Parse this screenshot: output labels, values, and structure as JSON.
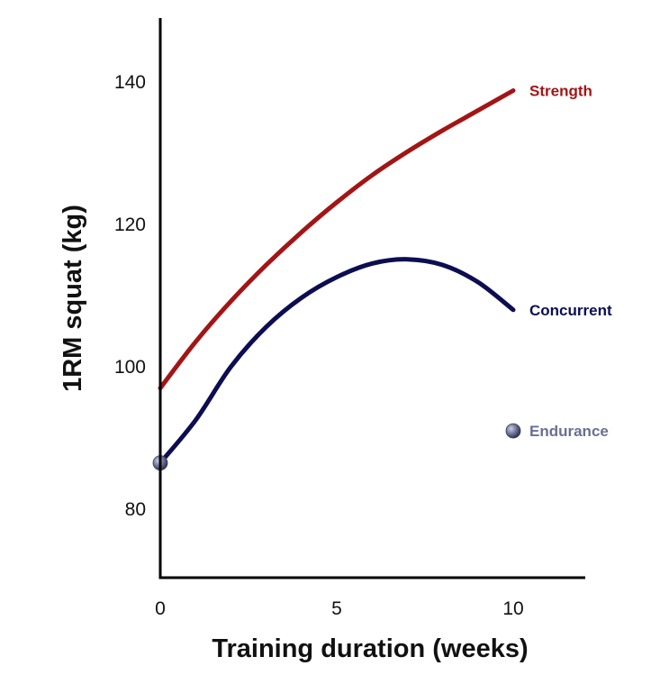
{
  "chart_data": {
    "type": "line",
    "title": "",
    "xlabel": "Training duration (weeks)",
    "ylabel": "1RM squat (kg)",
    "xlim": [
      0,
      12
    ],
    "ylim": [
      70,
      148
    ],
    "xticks": [
      0,
      5,
      10
    ],
    "yticks": [
      80,
      100,
      120,
      140
    ],
    "grid": false,
    "legend": "inline labels at line ends",
    "series": [
      {
        "name": "Strength",
        "color": "#a31515",
        "x": [
          0,
          1,
          2,
          3,
          4,
          5,
          6,
          7,
          8,
          9,
          10
        ],
        "y": [
          97,
          103.5,
          109.2,
          114.3,
          118.9,
          123.1,
          126.9,
          130.2,
          133.2,
          136,
          138.8
        ]
      },
      {
        "name": "Concurrent",
        "color": "#0d0d52",
        "x": [
          0,
          1,
          2,
          3,
          4,
          5,
          6,
          7,
          8,
          9,
          10
        ],
        "y": [
          86.5,
          92.5,
          100,
          105.6,
          109.7,
          112.6,
          114.5,
          115.1,
          114.3,
          111.9,
          108
        ]
      },
      {
        "name": "Endurance",
        "color": "#6b6f92",
        "style": "points",
        "x": [
          0,
          10
        ],
        "y": [
          86.5,
          91
        ]
      }
    ]
  }
}
